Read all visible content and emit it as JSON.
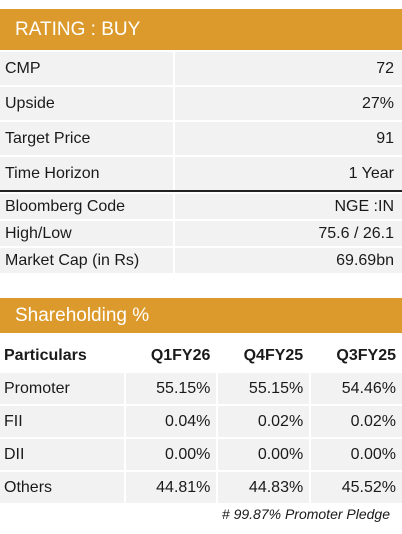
{
  "rating_header": "RATING : BUY",
  "rating_rows": [
    {
      "label": "CMP",
      "value": "72"
    },
    {
      "label": "Upside",
      "value": "27%"
    },
    {
      "label": "Target Price",
      "value": "91"
    },
    {
      "label": "Time Horizon",
      "value": "1 Year"
    }
  ],
  "info_rows": [
    {
      "label": "Bloomberg Code",
      "value": "NGE :IN"
    },
    {
      "label": "High/Low",
      "value": "75.6 / 26.1"
    },
    {
      "label": "Market  Cap (in Rs)",
      "value": "69.69bn"
    }
  ],
  "shareholding_header": "Shareholding %",
  "shareholding": {
    "columns": [
      "Particulars",
      "Q1FY26",
      "Q4FY25",
      "Q3FY25"
    ],
    "rows": [
      [
        "Promoter",
        "55.15%",
        "55.15%",
        "54.46%"
      ],
      [
        "FII",
        "0.04%",
        "0.02%",
        "0.02%"
      ],
      [
        "DII",
        "0.00%",
        "0.00%",
        "0.00%"
      ],
      [
        "Others",
        "44.81%",
        "44.83%",
        "45.52%"
      ]
    ]
  },
  "footnote": "# 99.87% Promoter Pledge",
  "colors": {
    "header_bg": "#dc9a2c",
    "row_bg": "#f2f2f2"
  }
}
